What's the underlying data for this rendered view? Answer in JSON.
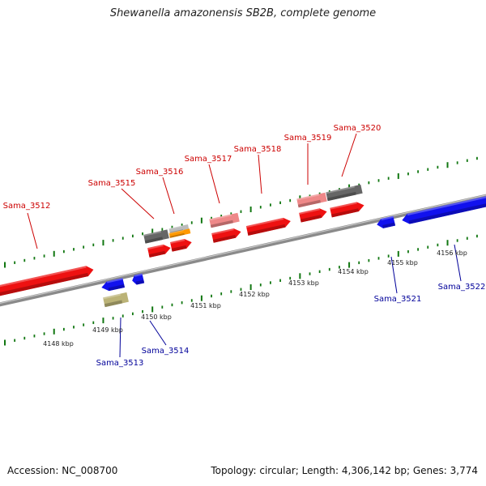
{
  "title": "Shewanella amazonensis SB2B, complete genome",
  "footer": {
    "accession": "Accession: NC_008700",
    "summary": "Topology: circular; Length: 4,306,142 bp; Genes: 3,774"
  },
  "colors": {
    "forward_gene": "#ee1111",
    "reverse_gene": "#1111ee",
    "forward_label": "#cc0000",
    "reverse_label": "#000099",
    "pale_red": "#ee8888",
    "gray_feature": "#666666",
    "olive_feature": "#bbb377",
    "orange_feature": "#ff9900",
    "tick": "#117711",
    "backbone": "#888888"
  },
  "forward_genes": [
    "Sama_3512",
    "Sama_3515",
    "Sama_3516",
    "Sama_3517",
    "Sama_3518",
    "Sama_3519",
    "Sama_3520"
  ],
  "reverse_genes": [
    "Sama_3513",
    "Sama_3514",
    "Sama_3521",
    "Sama_3522"
  ],
  "scale_ticks": [
    "4148 kbp",
    "4149 kbp",
    "4150 kbp",
    "4151 kbp",
    "4152 kbp",
    "4153 kbp",
    "4154 kbp",
    "4155 kbp",
    "4156 kbp"
  ]
}
